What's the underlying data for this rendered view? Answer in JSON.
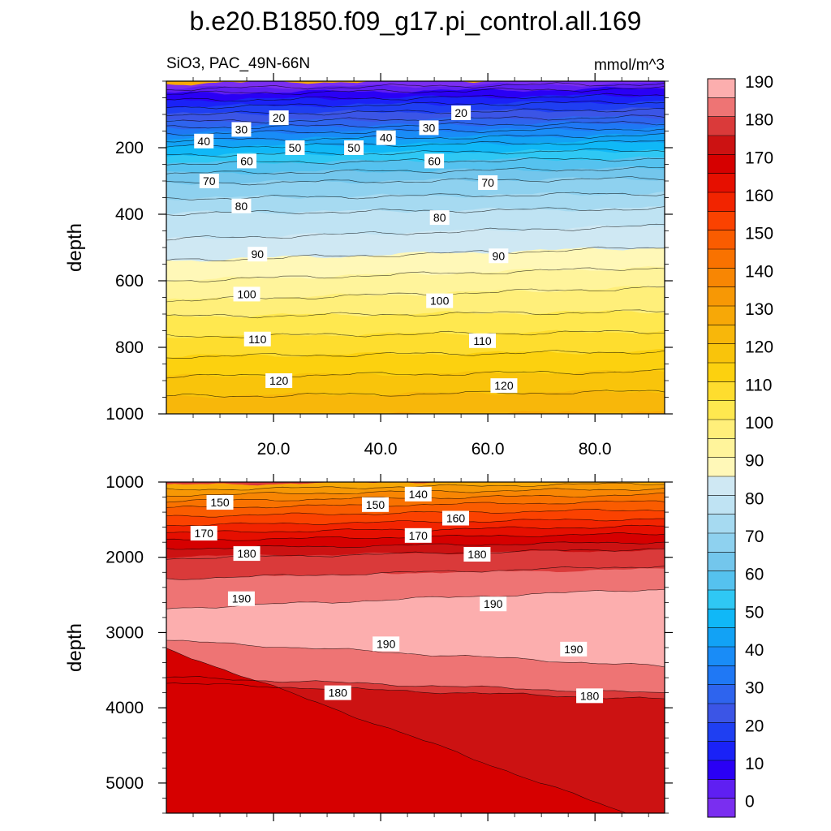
{
  "chart_data": {
    "type": "contour",
    "title": "b.e20.B1850.f09_g17.pi_control.all.169",
    "variable": "SiO3, PAC_49N-66N",
    "units": "mmol/m^3",
    "ylabel": "depth",
    "xlim": [
      0,
      93
    ],
    "x_ticks": [
      "20.0",
      "40.0",
      "60.0",
      "80.0"
    ],
    "x_tick_values": [
      20,
      40,
      60,
      80
    ],
    "colorbar": {
      "levels": [
        0,
        5,
        10,
        15,
        20,
        25,
        30,
        35,
        40,
        45,
        50,
        55,
        60,
        65,
        70,
        75,
        80,
        85,
        90,
        95,
        100,
        105,
        110,
        115,
        120,
        125,
        130,
        135,
        140,
        145,
        150,
        155,
        160,
        165,
        170,
        175,
        180,
        185,
        190,
        195
      ],
      "labels": [
        "0",
        "10",
        "20",
        "30",
        "40",
        "50",
        "60",
        "70",
        "80",
        "90",
        "100",
        "110",
        "120",
        "130",
        "140",
        "150",
        "160",
        "170",
        "180",
        "190"
      ],
      "colors": [
        "#7a2ef0",
        "#5f1ff2",
        "#2a00f5",
        "#1a22f7",
        "#1f3ff2",
        "#3b55e6",
        "#2e64ee",
        "#1f78f5",
        "#198cf7",
        "#12a2f5",
        "#10b8f7",
        "#2fc8f4",
        "#55c2ef",
        "#73c6ec",
        "#8ed1ef",
        "#a6daf1",
        "#bfe3f3",
        "#cfe8f3",
        "#fff8b8",
        "#fff49b",
        "#ffef7a",
        "#ffe84f",
        "#fedd2e",
        "#fcd10f",
        "#f9c40b",
        "#f8b70a",
        "#f7a807",
        "#f79805",
        "#f88603",
        "#f97200",
        "#fa5c00",
        "#fb4200",
        "#f22400",
        "#e60f00",
        "#d60000",
        "#cc1212",
        "#da3a3a",
        "#ee7474",
        "#fcaeae"
      ]
    },
    "panels": [
      {
        "name": "upper",
        "ylim": [
          0,
          1000
        ],
        "y_ticks": [
          200,
          400,
          600,
          800,
          1000
        ],
        "depth_of_contour": {
          "0": 0,
          "10": 30,
          "20": 70,
          "30": 115,
          "40": 150,
          "50": 190,
          "60": 240,
          "70": 300,
          "80": 390,
          "90": 520,
          "100": 640,
          "110": 760,
          "120": 880,
          "130": 1000
        },
        "contour_labels": [
          {
            "text": "20",
            "x": 21,
            "y": 110
          },
          {
            "text": "20",
            "x": 55,
            "y": 95
          },
          {
            "text": "30",
            "x": 14,
            "y": 145
          },
          {
            "text": "30",
            "x": 49,
            "y": 140
          },
          {
            "text": "40",
            "x": 7,
            "y": 180
          },
          {
            "text": "40",
            "x": 41,
            "y": 170
          },
          {
            "text": "50",
            "x": 24,
            "y": 200
          },
          {
            "text": "50",
            "x": 35,
            "y": 200
          },
          {
            "text": "60",
            "x": 15,
            "y": 240
          },
          {
            "text": "60",
            "x": 50,
            "y": 240
          },
          {
            "text": "70",
            "x": 8,
            "y": 300
          },
          {
            "text": "70",
            "x": 60,
            "y": 305
          },
          {
            "text": "80",
            "x": 14,
            "y": 375
          },
          {
            "text": "80",
            "x": 51,
            "y": 410
          },
          {
            "text": "90",
            "x": 17,
            "y": 520
          },
          {
            "text": "90",
            "x": 62,
            "y": 525
          },
          {
            "text": "100",
            "x": 15,
            "y": 640
          },
          {
            "text": "100",
            "x": 51,
            "y": 660
          },
          {
            "text": "110",
            "x": 17,
            "y": 775
          },
          {
            "text": "110",
            "x": 59,
            "y": 780
          },
          {
            "text": "120",
            "x": 21,
            "y": 900
          },
          {
            "text": "120",
            "x": 63,
            "y": 915
          }
        ]
      },
      {
        "name": "lower",
        "ylim": [
          1000,
          5400
        ],
        "y_ticks": [
          1000,
          2000,
          3000,
          4000,
          5000
        ],
        "depth_of_contour": {
          "130": 1000,
          "140": 1130,
          "150": 1300,
          "160": 1530,
          "170": 1730,
          "180": 1950,
          "190": 2550,
          "195": 2750
        },
        "contour_labels": [
          {
            "text": "150",
            "x": 10,
            "y": 1270
          },
          {
            "text": "140",
            "x": 47,
            "y": 1160
          },
          {
            "text": "150",
            "x": 39,
            "y": 1300
          },
          {
            "text": "160",
            "x": 54,
            "y": 1480
          },
          {
            "text": "170",
            "x": 7,
            "y": 1680
          },
          {
            "text": "170",
            "x": 47,
            "y": 1710
          },
          {
            "text": "180",
            "x": 15,
            "y": 1950
          },
          {
            "text": "180",
            "x": 58,
            "y": 1960
          },
          {
            "text": "190",
            "x": 14,
            "y": 2550
          },
          {
            "text": "190",
            "x": 61,
            "y": 2620
          },
          {
            "text": "190",
            "x": 41,
            "y": 3150
          },
          {
            "text": "190",
            "x": 76,
            "y": 3220
          },
          {
            "text": "180",
            "x": 32,
            "y": 3800
          },
          {
            "text": "180",
            "x": 79,
            "y": 3840
          }
        ]
      }
    ]
  }
}
